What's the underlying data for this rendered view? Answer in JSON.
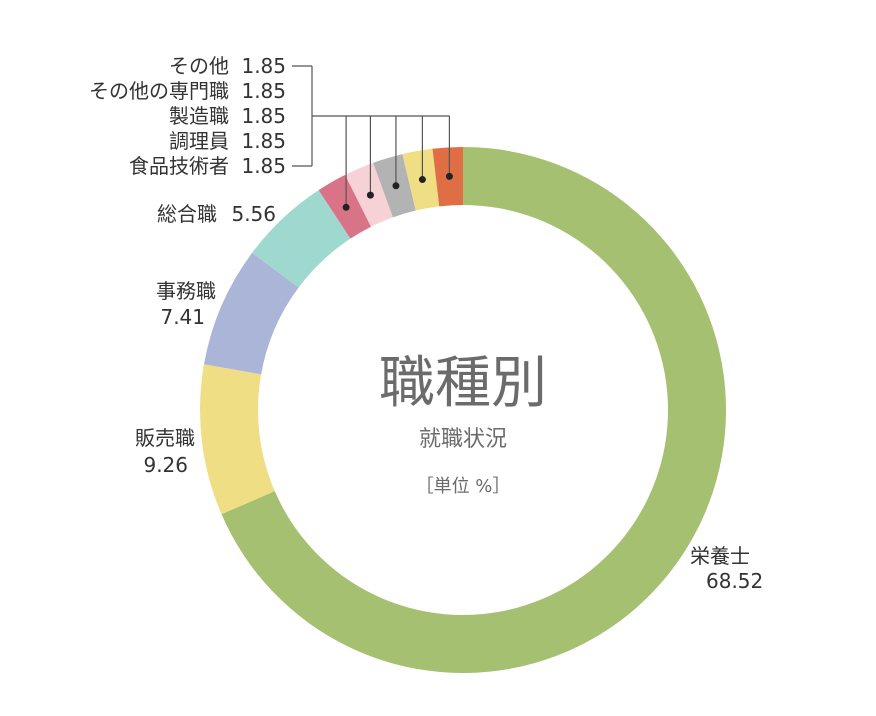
{
  "chart_data": {
    "type": "pie",
    "title": "職種別",
    "subtitle": "就職状況",
    "unit_label": "［単位 %］",
    "slices": [
      {
        "label": "栄養士",
        "value": 68.52,
        "value_text": "68.52",
        "color": "#a4c070"
      },
      {
        "label": "販売職",
        "value": 9.26,
        "value_text": "9.26",
        "color": "#f0de84"
      },
      {
        "label": "事務職",
        "value": 7.41,
        "value_text": "7.41",
        "color": "#aab5d8"
      },
      {
        "label": "総合職",
        "value": 5.56,
        "value_text": "5.56",
        "color": "#9fd8cf"
      },
      {
        "label": "その他",
        "value": 1.85,
        "value_text": "1.85",
        "color": "#d97488"
      },
      {
        "label": "その他の専門職",
        "value": 1.85,
        "value_text": "1.85",
        "color": "#f6d2d6"
      },
      {
        "label": "製造職",
        "value": 1.85,
        "value_text": "1.85",
        "color": "#b3b3b3"
      },
      {
        "label": "調理員",
        "value": 1.85,
        "value_text": "1.85",
        "color": "#f0de84"
      },
      {
        "label": "食品技術者",
        "value": 1.85,
        "value_text": "1.85",
        "color": "#e06e45"
      }
    ]
  }
}
